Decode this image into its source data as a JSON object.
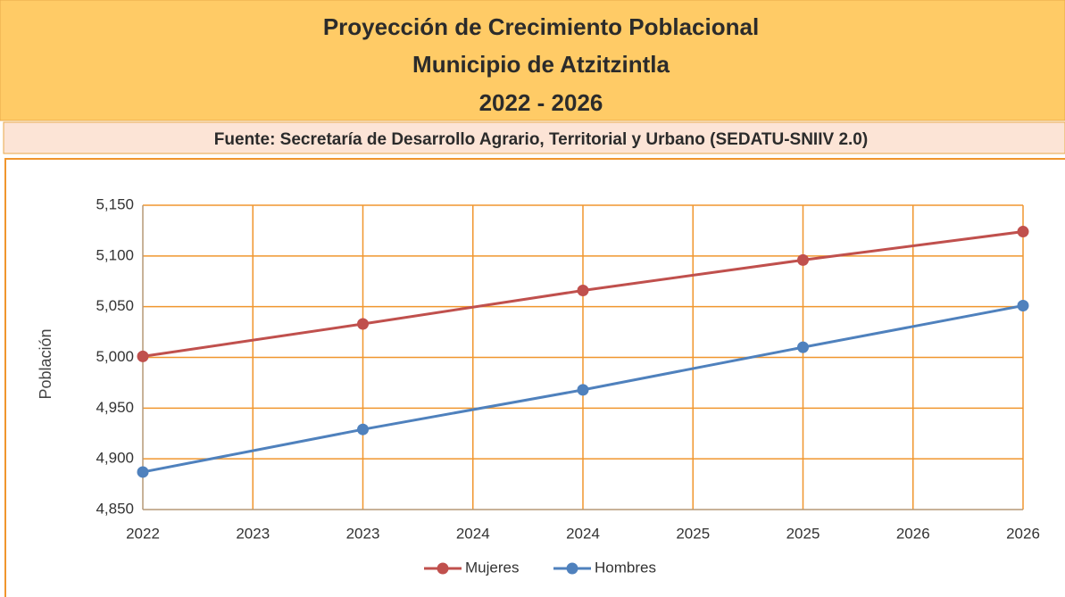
{
  "chart_data": {
    "type": "line",
    "title": [
      "Proyección de Crecimiento Poblacional",
      "Municipio de Atzitzintla",
      "2022 - 2026"
    ],
    "subtitle": "Fuente: Secretaría de Desarrollo Agrario, Territorial y Urbano (SEDATU-SNIIV 2.0)",
    "ylabel": "Población",
    "x": [
      2022,
      2023,
      2024,
      2025,
      2026
    ],
    "series": [
      {
        "name": "Mujeres",
        "color": "#c0504d",
        "values": [
          5001,
          5033,
          5066,
          5096,
          5124
        ]
      },
      {
        "name": "Hombres",
        "color": "#4f81bd",
        "values": [
          4887,
          4929,
          4968,
          5010,
          5051
        ]
      }
    ],
    "xlim": [
      2022,
      2026
    ],
    "xticks": [
      2022,
      {
        "value": 2022.5,
        "label": "2023"
      },
      2023,
      {
        "value": 2023.5,
        "label": "2024"
      },
      2024,
      {
        "value": 2024.5,
        "label": "2025"
      },
      2025,
      {
        "value": 2025.5,
        "label": "2026"
      },
      2026
    ],
    "ylim": [
      4850,
      5150
    ],
    "yticks": [
      4850,
      4900,
      4950,
      5000,
      5050,
      5100,
      5150
    ],
    "ytick_labels": [
      "4,850",
      "4,900",
      "4,950",
      "5,000",
      "5,050",
      "5,100",
      "5,150"
    ],
    "grid": true,
    "grid_color": "#f0962e",
    "legend": "bottom"
  }
}
